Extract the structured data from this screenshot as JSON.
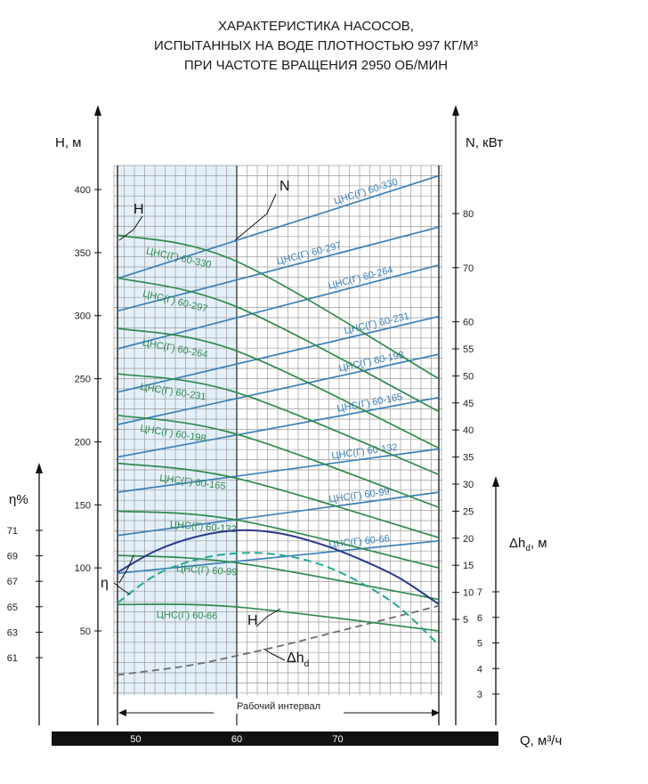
{
  "title": {
    "line1": "ХАРАКТЕРИСТИКА НАСОСОВ,",
    "line2": "ИСПЫТАННЫХ НА ВОДЕ ПЛОТНОСТЬЮ 997 КГ/М³",
    "line3": "ПРИ ЧАСТОТЕ ВРАЩЕНИЯ 2950 ОБ/МИН"
  },
  "colors": {
    "head": "#2f8a4e",
    "power": "#3a80b8",
    "efficiency": "#2a3a8c",
    "npsh": "#6b6b6b",
    "eff_dashed": "#22a894",
    "working_band": "#e3f0fa",
    "grid": "#9a9a9a",
    "bottom_bar": "#111111"
  },
  "working_interval_label": "Рабочий интервал",
  "chart_data": {
    "type": "line",
    "x_label": "Q, м³/ч",
    "x_ticks": [
      50,
      60,
      70
    ],
    "x_range": [
      48.2,
      80
    ],
    "working_interval": [
      48.2,
      60
    ],
    "head_axis": {
      "label": "H, м",
      "ticks": [
        50,
        100,
        150,
        200,
        250,
        300,
        350,
        400
      ]
    },
    "power_axis": {
      "label": "N, кВт",
      "ticks": [
        5,
        10,
        15,
        20,
        25,
        30,
        35,
        40,
        45,
        50,
        55,
        60,
        70,
        80
      ]
    },
    "eff_axis": {
      "label": "η%",
      "ticks": [
        61,
        63,
        65,
        67,
        69,
        71
      ]
    },
    "npsh_axis": {
      "label": "Δh_d, м",
      "ticks": [
        3,
        4,
        5,
        6,
        7
      ]
    },
    "curve_markers": {
      "H": "H",
      "N": "N",
      "eta": "η",
      "npsh": "Δh",
      "npsh_sub": "d"
    },
    "head_series": [
      {
        "name": "ЦНС(Г) 60-330",
        "x": [
          48.2,
          60,
          80
        ],
        "y": [
          364,
          343,
          250
        ]
      },
      {
        "name": "ЦНС(Г) 60-297",
        "x": [
          48.2,
          60,
          80
        ],
        "y": [
          330,
          307,
          224
        ]
      },
      {
        "name": "ЦНС(Г) 60-264",
        "x": [
          48.2,
          60,
          80
        ],
        "y": [
          290,
          272,
          195
        ]
      },
      {
        "name": "ЦНС(Г) 60-231",
        "x": [
          48.2,
          60,
          80
        ],
        "y": [
          254,
          239,
          174
        ]
      },
      {
        "name": "ЦНС(Г) 60-198",
        "x": [
          48.2,
          60,
          80
        ],
        "y": [
          221,
          206,
          148
        ]
      },
      {
        "name": "ЦНС(Г) 60-165",
        "x": [
          48.2,
          60,
          80
        ],
        "y": [
          183,
          171,
          124
        ]
      },
      {
        "name": "ЦНС(Г) 60-132",
        "x": [
          48.2,
          60,
          80
        ],
        "y": [
          145,
          138,
          100
        ]
      },
      {
        "name": "ЦНС(Г) 60-99",
        "x": [
          48.2,
          60,
          80
        ],
        "y": [
          110,
          104,
          75
        ]
      },
      {
        "name": "ЦНС(Г) 60-66",
        "x": [
          48.2,
          60,
          80
        ],
        "y": [
          71,
          69,
          50
        ]
      }
    ],
    "power_series": [
      {
        "name": "ЦНС(Г) 60-330",
        "x": [
          48.2,
          80
        ],
        "y": [
          68,
          87
        ]
      },
      {
        "name": "ЦНС(Г) 60-297",
        "x": [
          48.2,
          80
        ],
        "y": [
          62,
          77.5
        ]
      },
      {
        "name": "ЦНС(Г) 60-264",
        "x": [
          48.2,
          80
        ],
        "y": [
          55,
          70.5
        ]
      },
      {
        "name": "ЦНС(Г) 60-231",
        "x": [
          48.2,
          80
        ],
        "y": [
          47,
          61
        ]
      },
      {
        "name": "ЦНС(Г) 60-198",
        "x": [
          48.2,
          80
        ],
        "y": [
          41,
          54
        ]
      },
      {
        "name": "ЦНС(Г) 60-165",
        "x": [
          48.2,
          80
        ],
        "y": [
          35,
          46
        ]
      },
      {
        "name": "ЦНС(Г) 60-132",
        "x": [
          48.2,
          80
        ],
        "y": [
          28.5,
          36.5
        ]
      },
      {
        "name": "ЦНС(Г) 60-99",
        "x": [
          48.2,
          80
        ],
        "y": [
          20.5,
          28.5
        ]
      },
      {
        "name": "ЦНС(Г) 60-66",
        "x": [
          48.2,
          80
        ],
        "y": [
          13.5,
          19.5
        ]
      }
    ],
    "efficiency": {
      "solid": {
        "x": [
          48.2,
          52,
          56,
          60,
          64,
          68,
          72,
          76,
          80
        ],
        "y": [
          67.7,
          69.4,
          70.5,
          71.0,
          70.8,
          70.0,
          68.8,
          67.3,
          65.2
        ]
      },
      "dashed": {
        "x": [
          48.2,
          52,
          56,
          60,
          64,
          68,
          72,
          76,
          80
        ],
        "y": [
          65.3,
          67.5,
          68.7,
          69.2,
          69.1,
          68.4,
          67.0,
          65.0,
          62.0
        ]
      }
    },
    "npsh": {
      "x": [
        48.2,
        55,
        60,
        65,
        70,
        75,
        80
      ],
      "y": [
        3.75,
        4.1,
        4.5,
        4.95,
        5.45,
        5.95,
        6.45
      ]
    }
  }
}
